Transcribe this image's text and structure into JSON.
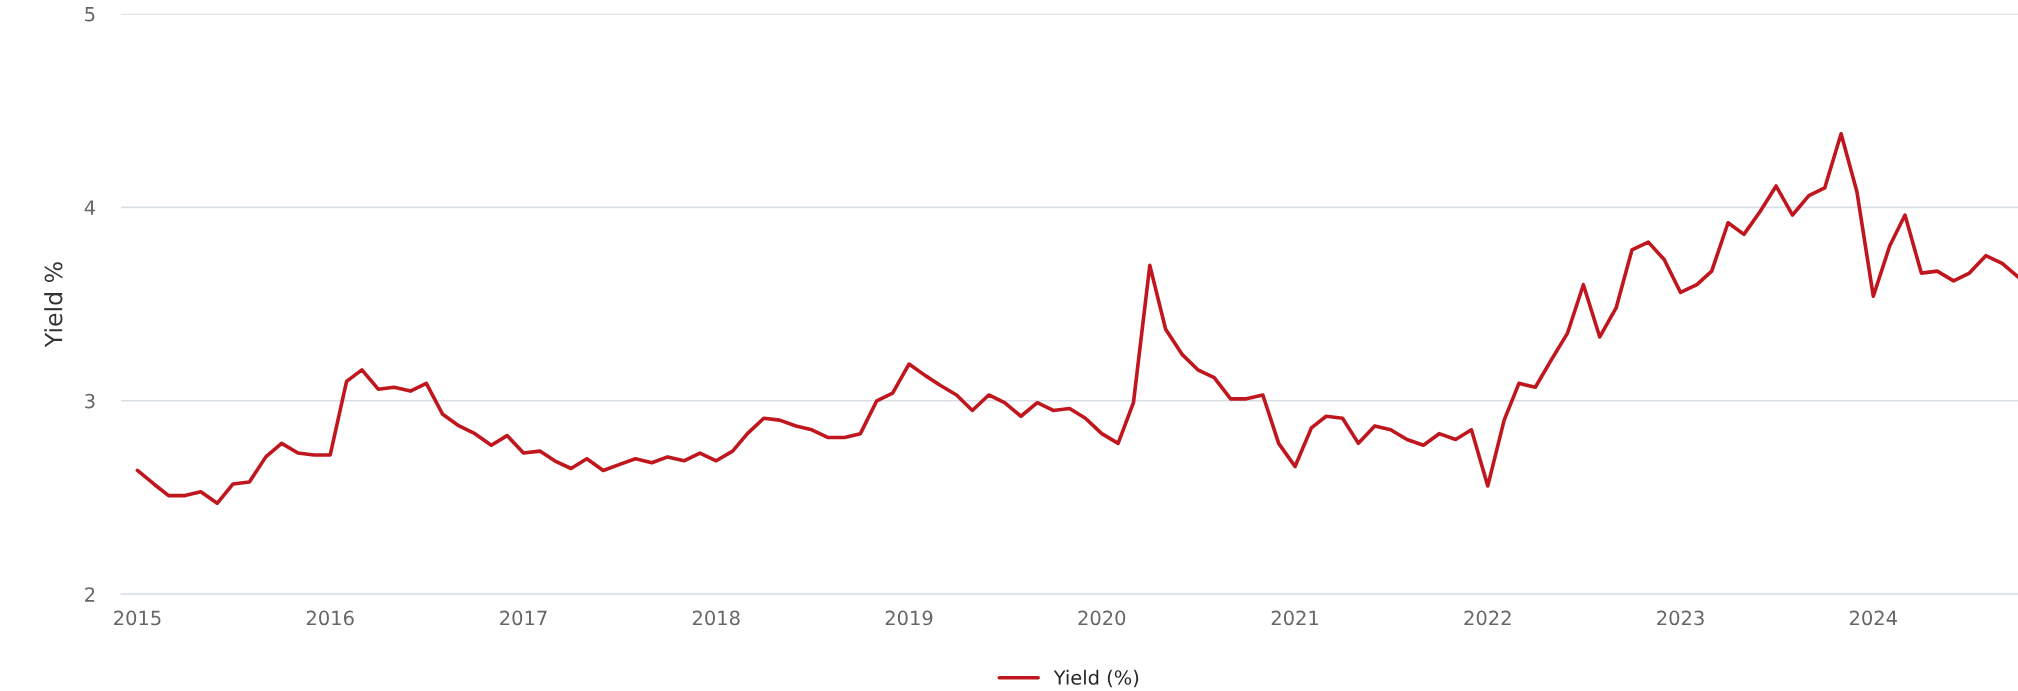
{
  "chart_data": {
    "type": "line",
    "ylabel": "Yield %",
    "x": [
      "2015-01",
      "2015-02",
      "2015-03",
      "2015-04",
      "2015-05",
      "2015-06",
      "2015-07",
      "2015-08",
      "2015-09",
      "2015-10",
      "2015-11",
      "2015-12",
      "2016-01",
      "2016-02",
      "2016-03",
      "2016-04",
      "2016-05",
      "2016-06",
      "2016-07",
      "2016-08",
      "2016-09",
      "2016-10",
      "2016-11",
      "2016-12",
      "2017-01",
      "2017-02",
      "2017-03",
      "2017-04",
      "2017-05",
      "2017-06",
      "2017-07",
      "2017-08",
      "2017-09",
      "2017-10",
      "2017-11",
      "2017-12",
      "2018-01",
      "2018-02",
      "2018-03",
      "2018-04",
      "2018-05",
      "2018-06",
      "2018-07",
      "2018-08",
      "2018-09",
      "2018-10",
      "2018-11",
      "2018-12",
      "2019-01",
      "2019-02",
      "2019-03",
      "2019-04",
      "2019-05",
      "2019-06",
      "2019-07",
      "2019-08",
      "2019-09",
      "2019-10",
      "2019-11",
      "2019-12",
      "2020-01",
      "2020-02",
      "2020-03",
      "2020-04",
      "2020-05",
      "2020-06",
      "2020-07",
      "2020-08",
      "2020-09",
      "2020-10",
      "2020-11",
      "2020-12",
      "2021-01",
      "2021-02",
      "2021-03",
      "2021-04",
      "2021-05",
      "2021-06",
      "2021-07",
      "2021-08",
      "2021-09",
      "2021-10",
      "2021-11",
      "2021-12",
      "2022-01",
      "2022-02",
      "2022-03",
      "2022-04",
      "2022-05",
      "2022-06",
      "2022-07",
      "2022-08",
      "2022-09",
      "2022-10",
      "2022-11",
      "2022-12",
      "2023-01",
      "2023-02",
      "2023-03",
      "2023-04",
      "2023-05",
      "2023-06",
      "2023-07",
      "2023-08",
      "2023-09",
      "2023-10",
      "2023-11",
      "2023-12",
      "2024-01",
      "2024-02",
      "2024-03",
      "2024-04",
      "2024-05",
      "2024-06",
      "2024-07",
      "2024-08",
      "2024-09",
      "2024-10"
    ],
    "series": [
      {
        "name": "Yield (%)",
        "color": "#c0161e",
        "values": [
          2.64,
          2.57,
          2.51,
          2.51,
          2.53,
          2.47,
          2.57,
          2.58,
          2.71,
          2.78,
          2.73,
          2.72,
          2.72,
          3.1,
          3.16,
          3.06,
          3.07,
          3.05,
          3.09,
          2.93,
          2.87,
          2.83,
          2.77,
          2.82,
          2.73,
          2.74,
          2.69,
          2.65,
          2.7,
          2.64,
          2.67,
          2.7,
          2.68,
          2.71,
          2.69,
          2.73,
          2.69,
          2.74,
          2.83,
          2.91,
          2.9,
          2.87,
          2.85,
          2.81,
          2.81,
          2.83,
          3.0,
          3.04,
          3.19,
          3.13,
          3.08,
          3.03,
          2.95,
          3.03,
          2.99,
          2.92,
          2.99,
          2.95,
          2.96,
          2.91,
          2.83,
          2.78,
          2.99,
          3.7,
          3.37,
          3.24,
          3.16,
          3.12,
          3.01,
          3.01,
          3.03,
          2.78,
          2.66,
          2.86,
          2.92,
          2.91,
          2.78,
          2.87,
          2.85,
          2.8,
          2.77,
          2.83,
          2.8,
          2.85,
          2.56,
          2.9,
          3.09,
          3.07,
          3.21,
          3.35,
          3.6,
          3.33,
          3.48,
          3.78,
          3.82,
          3.73,
          3.56,
          3.6,
          3.67,
          3.92,
          3.86,
          3.98,
          4.11,
          3.96,
          4.06,
          4.1,
          4.38,
          4.08,
          3.54,
          3.8,
          3.96,
          3.66,
          3.67,
          3.62,
          3.66,
          3.75,
          3.71,
          3.64
        ]
      }
    ],
    "xlim": [
      "2014-12",
      "2024-10"
    ],
    "xticks": [
      "2015",
      "2016",
      "2017",
      "2018",
      "2019",
      "2020",
      "2021",
      "2022",
      "2023",
      "2024"
    ],
    "ylim": [
      2,
      5
    ],
    "yticks": [
      2,
      3,
      4,
      5
    ],
    "grid": "y",
    "legend": "bottom",
    "line_style": "solid"
  }
}
